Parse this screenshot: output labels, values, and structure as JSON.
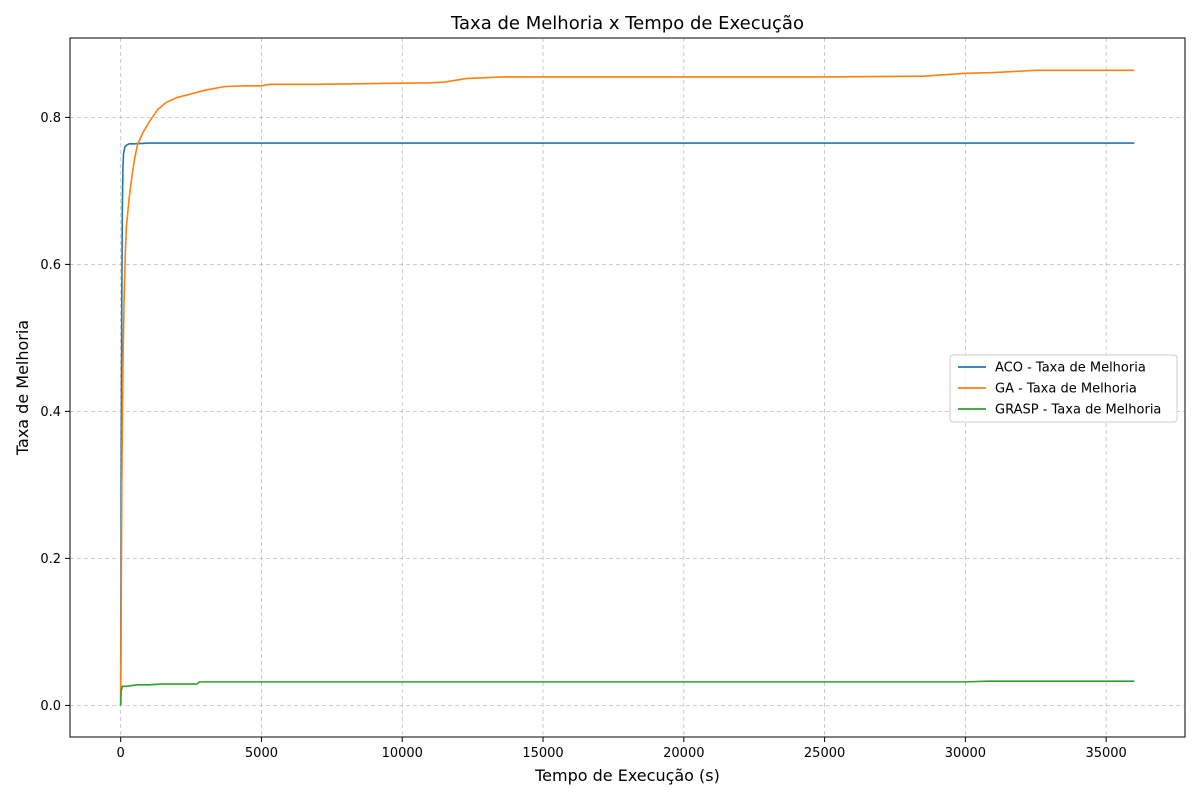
{
  "chart_data": {
    "type": "line",
    "title": "Taxa de Melhoria x Tempo de Execução",
    "xlabel": "Tempo de Execução (s)",
    "ylabel": "Taxa de Melhoria",
    "xlim": [
      -1800,
      37800
    ],
    "ylim": [
      -0.043,
      0.908
    ],
    "xticks": [
      0,
      5000,
      10000,
      15000,
      20000,
      25000,
      30000,
      35000
    ],
    "xtick_labels": [
      "0",
      "5000",
      "10000",
      "15000",
      "20000",
      "25000",
      "30000",
      "35000"
    ],
    "yticks": [
      0.0,
      0.2,
      0.4,
      0.6,
      0.8
    ],
    "ytick_labels": [
      "0.0",
      "0.2",
      "0.4",
      "0.6",
      "0.8"
    ],
    "grid": true,
    "legend_position": "center-right",
    "series": [
      {
        "name": "ACO - Taxa de Melhoria",
        "color": "#1f77b4",
        "x": [
          0,
          20,
          40,
          60,
          80,
          100,
          150,
          200,
          300,
          500,
          1000,
          5000,
          10000,
          20000,
          30000,
          36000
        ],
        "y": [
          0.0,
          0.35,
          0.55,
          0.68,
          0.73,
          0.75,
          0.76,
          0.762,
          0.764,
          0.764,
          0.765,
          0.765,
          0.765,
          0.765,
          0.765,
          0.765
        ]
      },
      {
        "name": "GA - Taxa de Melhoria",
        "color": "#ff7f0e",
        "x": [
          0,
          40,
          80,
          120,
          160,
          200,
          300,
          400,
          500,
          600,
          800,
          1000,
          1300,
          1600,
          2000,
          2500,
          3000,
          3700,
          4500,
          5000,
          5300,
          7000,
          9000,
          11000,
          11500,
          12300,
          13000,
          13500,
          16000,
          20000,
          25000,
          28500,
          30000,
          31000,
          32500,
          36000
        ],
        "y": [
          0.0,
          0.3,
          0.46,
          0.55,
          0.61,
          0.65,
          0.69,
          0.72,
          0.745,
          0.763,
          0.78,
          0.793,
          0.81,
          0.82,
          0.827,
          0.832,
          0.837,
          0.842,
          0.843,
          0.843,
          0.845,
          0.845,
          0.846,
          0.847,
          0.848,
          0.853,
          0.854,
          0.855,
          0.855,
          0.855,
          0.855,
          0.856,
          0.86,
          0.861,
          0.864,
          0.864
        ]
      },
      {
        "name": "GRASP - Taxa de Melhoria",
        "color": "#2ca02c",
        "x": [
          0,
          20,
          60,
          200,
          400,
          600,
          1000,
          1400,
          2000,
          2700,
          2800,
          5000,
          10000,
          20000,
          30000,
          30800,
          36000
        ],
        "y": [
          0.0,
          0.02,
          0.026,
          0.026,
          0.027,
          0.028,
          0.028,
          0.029,
          0.029,
          0.029,
          0.032,
          0.032,
          0.032,
          0.032,
          0.032,
          0.033,
          0.033
        ]
      }
    ]
  }
}
